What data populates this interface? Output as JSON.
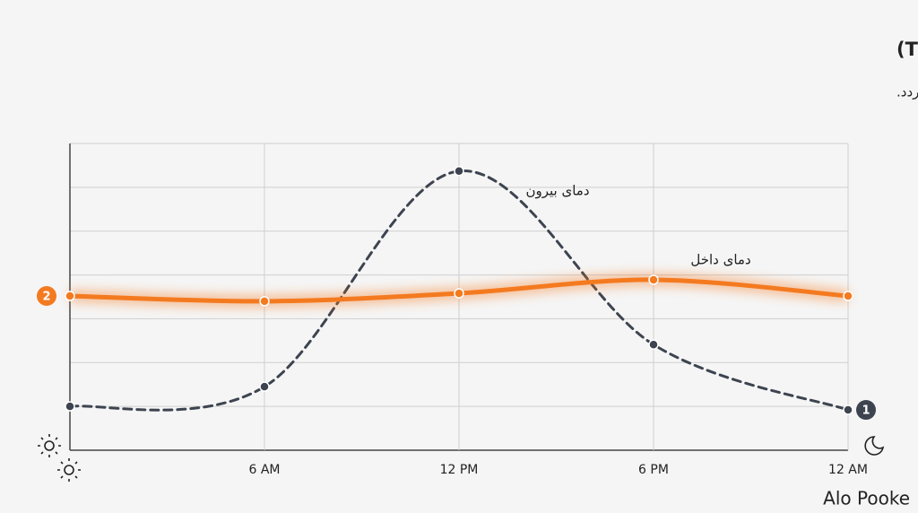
{
  "chart_data": {
    "type": "line",
    "title": "پایداری حرارتی (Thermal Inertia)",
    "subtitle": "اثر تأخیر حرارتی (Thermal Lag) باعث می‌شود پیک گرمای ظهر به بعد از نیمه‌شب موکول شود و نوسانات دما حذف گردد.",
    "x": [
      0,
      6,
      12,
      18,
      24
    ],
    "xlim": [
      0,
      24
    ],
    "xticks": [
      {
        "value": 6,
        "label": "6 AM"
      },
      {
        "value": 12,
        "label": "12 PM"
      },
      {
        "value": 18,
        "label": "6 PM"
      },
      {
        "value": 24,
        "label": "12 AM"
      }
    ],
    "ylim": [
      0,
      7
    ],
    "grid": true,
    "series": [
      {
        "name": "دمای بیرون",
        "badge": "1",
        "color": "#3d4450",
        "dashed": true,
        "values": [
          1.0,
          1.45,
          6.37,
          2.41,
          0.92
        ]
      },
      {
        "name": "دمای داخل",
        "badge": "2",
        "color": "#f47a20",
        "dashed": false,
        "values": [
          3.52,
          3.4,
          3.58,
          3.89,
          3.52
        ]
      }
    ],
    "brand": "Alo Pooke"
  }
}
